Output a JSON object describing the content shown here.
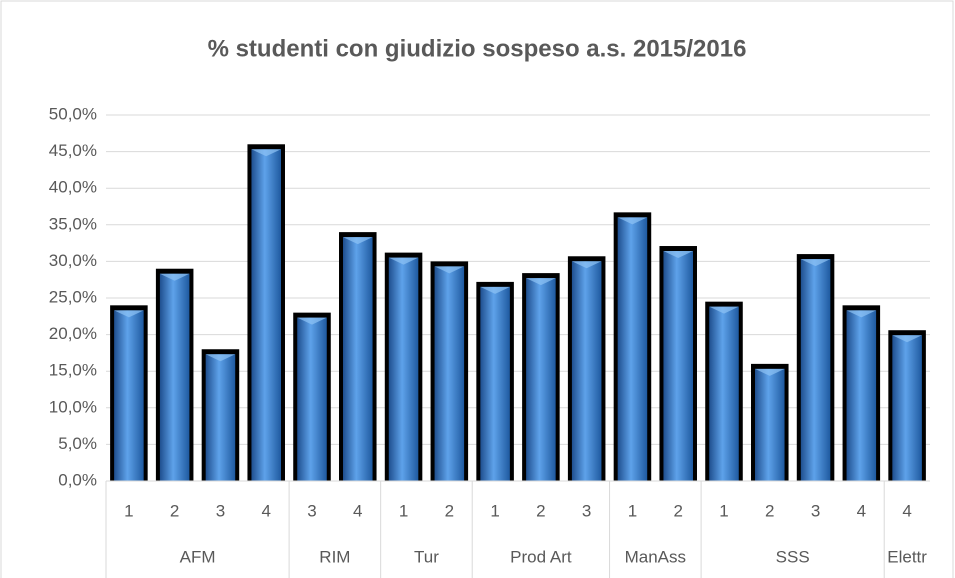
{
  "chart_data": {
    "type": "bar",
    "title": "% studenti con giudizio sospeso a.s. 2015/2016",
    "groups": [
      {
        "name": "AFM",
        "categories": [
          "1",
          "2",
          "3",
          "4"
        ]
      },
      {
        "name": "RIM",
        "categories": [
          "3",
          "4"
        ]
      },
      {
        "name": "Tur",
        "categories": [
          "1",
          "2"
        ]
      },
      {
        "name": "Prod Art",
        "categories": [
          "1",
          "2",
          "3"
        ]
      },
      {
        "name": "ManAss",
        "categories": [
          "1",
          "2"
        ]
      },
      {
        "name": "SSS",
        "categories": [
          "1",
          "2",
          "3",
          "4"
        ]
      },
      {
        "name": "Elettr",
        "categories": [
          "4"
        ]
      }
    ],
    "values": [
      24.0,
      29.0,
      18.0,
      46.0,
      23.0,
      34.0,
      31.2,
      30.0,
      27.2,
      28.4,
      30.7,
      36.7,
      32.1,
      24.5,
      16.0,
      31.0,
      24.0,
      20.6
    ],
    "color": "#3a7fd0",
    "ylim": [
      0,
      50
    ],
    "yticks": [
      {
        "value": 0,
        "label": "0,0%"
      },
      {
        "value": 5,
        "label": "5,0%"
      },
      {
        "value": 10,
        "label": "10,0%"
      },
      {
        "value": 15,
        "label": "15,0%"
      },
      {
        "value": 20,
        "label": "20,0%"
      },
      {
        "value": 25,
        "label": "25,0%"
      },
      {
        "value": 30,
        "label": "30,0%"
      },
      {
        "value": 35,
        "label": "35,0%"
      },
      {
        "value": 40,
        "label": "40,0%"
      },
      {
        "value": 45,
        "label": "45,0%"
      },
      {
        "value": 50,
        "label": "50,0%"
      }
    ],
    "grid": true
  }
}
